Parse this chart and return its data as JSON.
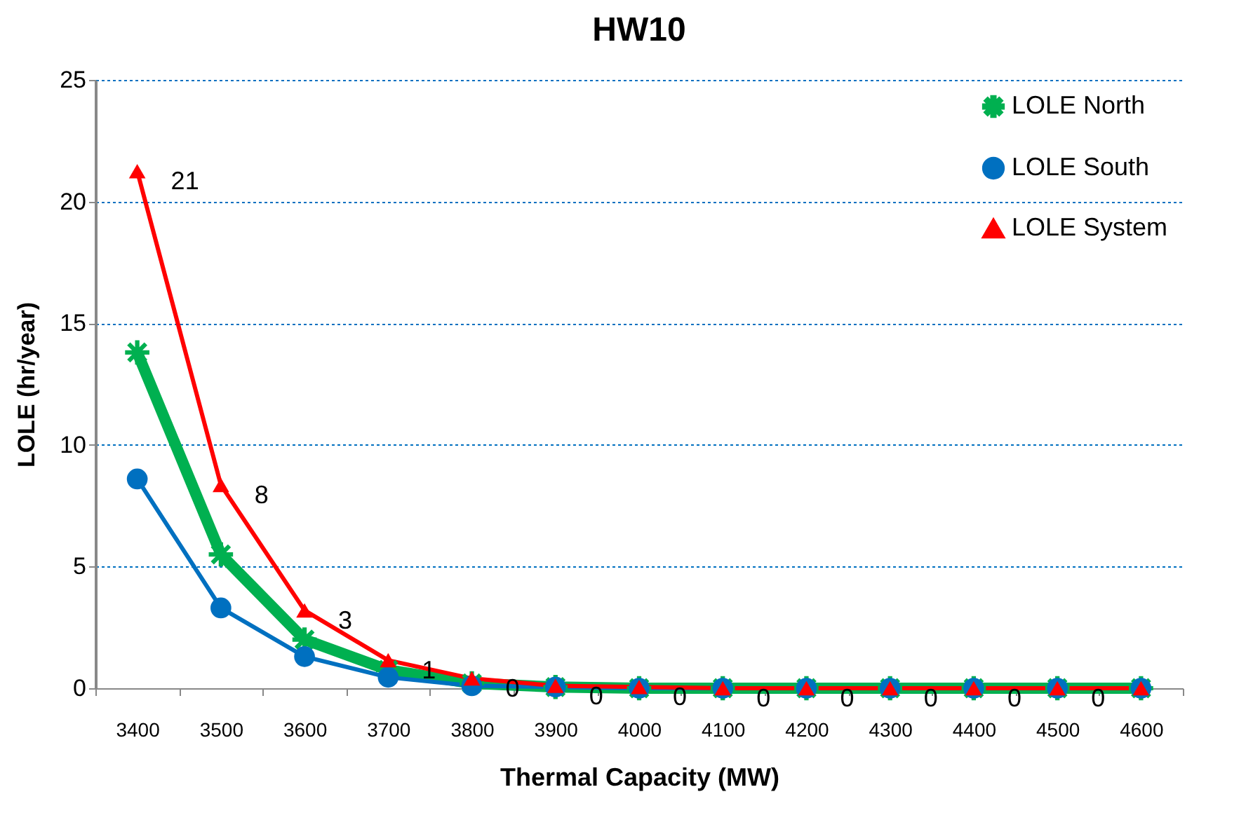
{
  "chart_data": {
    "type": "line",
    "title": "HW10",
    "xlabel": "Thermal Capacity (MW)",
    "ylabel": "LOLE (hr/year)",
    "categories": [
      "3400",
      "3500",
      "3600",
      "3700",
      "3800",
      "3900",
      "4000",
      "4100",
      "4200",
      "4300",
      "4400",
      "4500",
      "4600"
    ],
    "series": [
      {
        "name": "LOLE North",
        "color": "#00b050",
        "marker": "star",
        "values": [
          13.8,
          5.5,
          2.0,
          0.75,
          0.2,
          0.05,
          0,
          0,
          0,
          0,
          0,
          0,
          0
        ]
      },
      {
        "name": "LOLE South",
        "color": "#0070c0",
        "marker": "circle",
        "values": [
          8.6,
          3.3,
          1.3,
          0.45,
          0.1,
          0.05,
          0,
          0,
          0,
          0,
          0,
          0,
          0
        ]
      },
      {
        "name": "LOLE System",
        "color": "#ff0000",
        "marker": "triangle",
        "values": [
          21.25,
          8.35,
          3.2,
          1.15,
          0.4,
          0.1,
          0.05,
          0,
          0,
          0,
          0,
          0,
          0
        ],
        "value_labels": [
          "21",
          "8",
          "3",
          "1",
          "0",
          "0",
          "0",
          "0",
          "0",
          "0",
          "0",
          "0",
          null
        ]
      }
    ],
    "ylim": [
      0,
      25
    ],
    "yticks": [
      0,
      5,
      10,
      15,
      20,
      25
    ],
    "grid": "y",
    "legend": "top right"
  }
}
